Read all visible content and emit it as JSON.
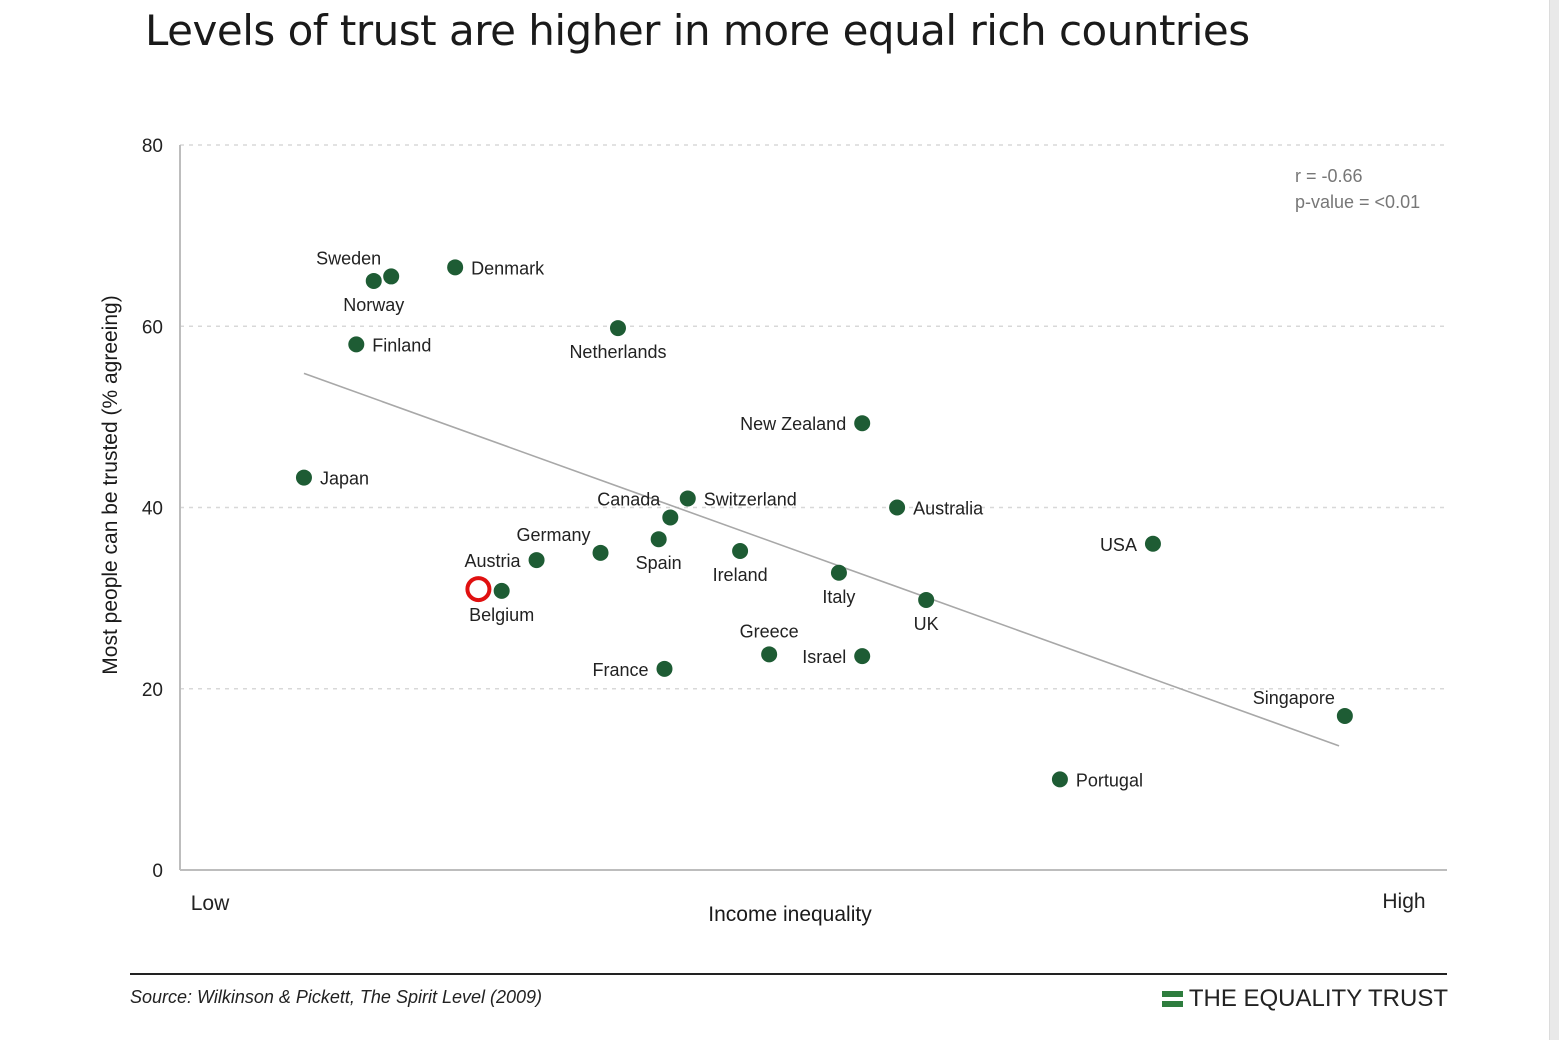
{
  "title": "Levels of trust are higher in more equal rich countries",
  "source": "Source: Wilkinson & Pickett, The Spirit Level (2009)",
  "brand": "THE EQUALITY TRUST",
  "colors": {
    "point": "#1e5c34",
    "trendline": "#a8a8a8",
    "grid": "#d8d8d8",
    "axis": "#bdbdbd",
    "highlight": "#e01010",
    "brand_green": "#2e7d3e"
  },
  "chart_data": {
    "type": "scatter",
    "title": "Levels of trust are higher in more equal rich countries",
    "xlabel": "Income inequality",
    "ylabel": "Most people can be trusted (% agreeing)",
    "x_tick_labels": {
      "low": "Low",
      "high": "High"
    },
    "xlim": [
      0,
      100
    ],
    "ylim": [
      0,
      80
    ],
    "yticks": [
      0,
      20,
      40,
      60,
      80
    ],
    "grid": "horizontal dashed",
    "x_axis_note": "x values are relative positions along an unscaled axis from Low (0) to High (100)",
    "annotation": [
      "r = -0.66",
      "p-value = <0.01"
    ],
    "trendline": {
      "x": [
        5.5,
        94.5
      ],
      "y": [
        54.8,
        13.7
      ]
    },
    "highlight_marker": {
      "x": 20.5,
      "y": 31.0
    },
    "points": [
      {
        "label": "Sweden",
        "x": 13.0,
        "y": 65.5,
        "label_pos": "above-left"
      },
      {
        "label": "Norway",
        "x": 11.5,
        "y": 65.0,
        "label_pos": "below"
      },
      {
        "label": "Denmark",
        "x": 18.5,
        "y": 66.5,
        "label_pos": "right"
      },
      {
        "label": "Finland",
        "x": 10.0,
        "y": 58.0,
        "label_pos": "right"
      },
      {
        "label": "Netherlands",
        "x": 32.5,
        "y": 59.8,
        "label_pos": "below"
      },
      {
        "label": "Japan",
        "x": 5.5,
        "y": 43.3,
        "label_pos": "right"
      },
      {
        "label": "New Zealand",
        "x": 53.5,
        "y": 49.3,
        "label_pos": "left"
      },
      {
        "label": "Switzerland",
        "x": 38.5,
        "y": 41.0,
        "label_pos": "right"
      },
      {
        "label": "Canada",
        "x": 37.0,
        "y": 38.9,
        "label_pos": "above-left"
      },
      {
        "label": "Australia",
        "x": 56.5,
        "y": 40.0,
        "label_pos": "right"
      },
      {
        "label": "Germany",
        "x": 31.0,
        "y": 35.0,
        "label_pos": "above-left"
      },
      {
        "label": "Spain",
        "x": 36.0,
        "y": 36.5,
        "label_pos": "below"
      },
      {
        "label": "Ireland",
        "x": 43.0,
        "y": 35.2,
        "label_pos": "below"
      },
      {
        "label": "Austria",
        "x": 25.5,
        "y": 34.2,
        "label_pos": "left"
      },
      {
        "label": "Belgium",
        "x": 22.5,
        "y": 30.8,
        "label_pos": "below"
      },
      {
        "label": "Italy",
        "x": 51.5,
        "y": 32.8,
        "label_pos": "below"
      },
      {
        "label": "UK",
        "x": 59.0,
        "y": 29.8,
        "label_pos": "below"
      },
      {
        "label": "USA",
        "x": 78.5,
        "y": 36.0,
        "label_pos": "left"
      },
      {
        "label": "Greece",
        "x": 45.5,
        "y": 23.8,
        "label_pos": "above"
      },
      {
        "label": "Israel",
        "x": 53.5,
        "y": 23.6,
        "label_pos": "left"
      },
      {
        "label": "France",
        "x": 36.5,
        "y": 22.2,
        "label_pos": "left"
      },
      {
        "label": "Singapore",
        "x": 95.0,
        "y": 17.0,
        "label_pos": "above-left"
      },
      {
        "label": "Portugal",
        "x": 70.5,
        "y": 10.0,
        "label_pos": "right"
      }
    ]
  }
}
